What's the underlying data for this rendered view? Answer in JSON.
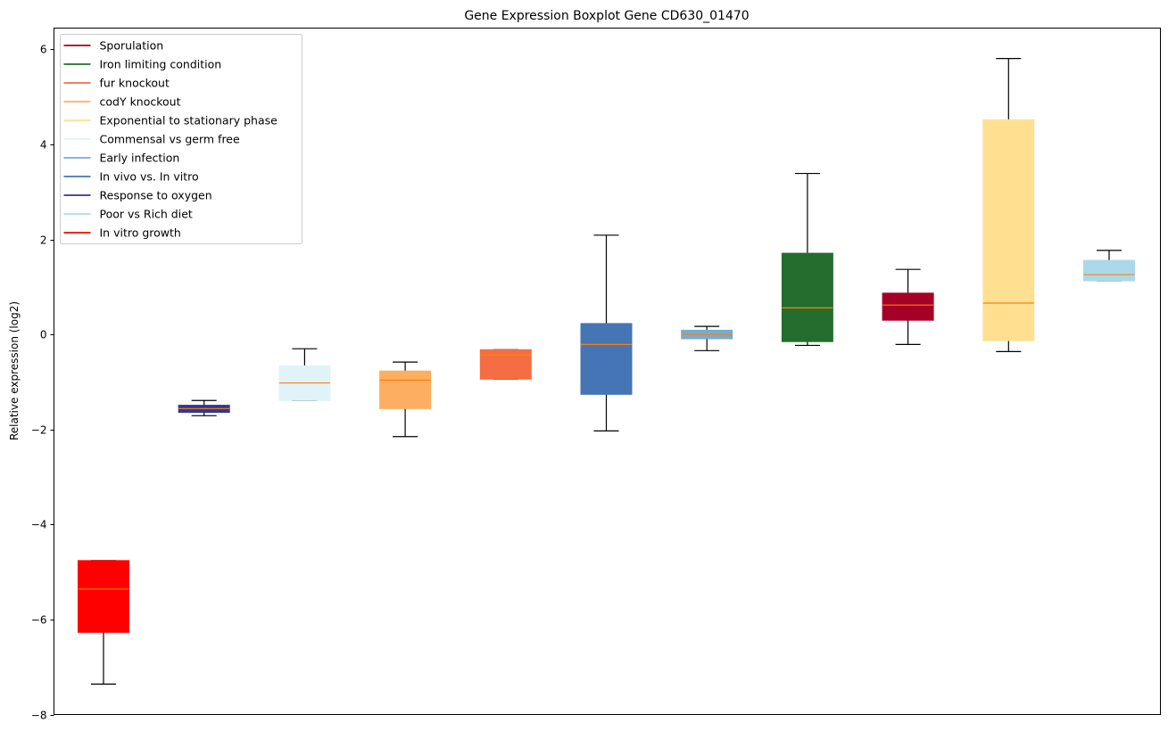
{
  "chart_data": {
    "type": "boxplot",
    "title": "Gene Expression Boxplot Gene CD630_01470",
    "xlabel": "",
    "ylabel": "Relative expression (log2)",
    "ylim": [
      -8,
      6.45
    ],
    "yticks": [
      -8,
      -6,
      -4,
      -2,
      0,
      2,
      4,
      6
    ],
    "ytick_labels": [
      "−8",
      "−6",
      "−4",
      "−2",
      "0",
      "2",
      "4",
      "6"
    ],
    "grid": false,
    "legend_position": "top-left",
    "median_color": "#ff7f0e",
    "boxes": [
      {
        "name": "In vitro growth",
        "color": "#ff0000",
        "whisker_high": -4.76,
        "q3": -4.76,
        "median": -5.36,
        "q1": -6.27,
        "whisker_low": -7.36
      },
      {
        "name": "Response to oxygen",
        "color": "#313695",
        "whisker_high": -1.39,
        "q3": -1.49,
        "median": -1.56,
        "q1": -1.64,
        "whisker_low": -1.71
      },
      {
        "name": "Commensal vs germ free",
        "color": "#e0f3f8",
        "whisker_high": -0.3,
        "q3": -0.66,
        "median": -1.02,
        "q1": -1.39,
        "whisker_low": -1.39
      },
      {
        "name": "codY knockout",
        "color": "#fdae61",
        "whisker_high": -0.58,
        "q3": -0.77,
        "median": -0.96,
        "q1": -1.56,
        "whisker_low": -2.15
      },
      {
        "name": "fur knockout",
        "color": "#f46d43",
        "whisker_high": -0.32,
        "q3": -0.32,
        "median": -0.43,
        "q1": -0.94,
        "whisker_low": -0.94
      },
      {
        "name": "In vivo vs. In vitro",
        "color": "#4575b4",
        "whisker_high": 2.09,
        "q3": 0.23,
        "median": -0.21,
        "q1": -1.26,
        "whisker_low": -2.03
      },
      {
        "name": "Early infection",
        "color": "#74add1",
        "whisker_high": 0.17,
        "q3": 0.09,
        "median": 0.0,
        "q1": -0.09,
        "whisker_low": -0.34
      },
      {
        "name": "Iron limiting condition",
        "color": "#236d2e",
        "whisker_high": 3.39,
        "q3": 1.71,
        "median": 0.56,
        "q1": -0.15,
        "whisker_low": -0.23
      },
      {
        "name": "Sporulation",
        "color": "#a50026",
        "whisker_high": 1.37,
        "q3": 0.87,
        "median": 0.62,
        "q1": 0.3,
        "whisker_low": -0.21
      },
      {
        "name": "Exponential to stationary phase",
        "color": "#fee090",
        "whisker_high": 5.81,
        "q3": 4.52,
        "median": 0.66,
        "q1": -0.13,
        "whisker_low": -0.36
      },
      {
        "name": "Poor vs Rich diet",
        "color": "#abd9e9",
        "whisker_high": 1.77,
        "q3": 1.56,
        "median": 1.26,
        "q1": 1.13,
        "whisker_low": 1.13
      }
    ],
    "legend": [
      {
        "label": "Sporulation",
        "color": "#a50026"
      },
      {
        "label": "Iron limiting condition",
        "color": "#236d2e"
      },
      {
        "label": "fur knockout",
        "color": "#f46d43"
      },
      {
        "label": "codY knockout",
        "color": "#fdae61"
      },
      {
        "label": "Exponential to stationary phase",
        "color": "#fee090"
      },
      {
        "label": "Commensal vs germ free",
        "color": "#e0f3f8"
      },
      {
        "label": "Early infection",
        "color": "#74add1"
      },
      {
        "label": "In vivo vs. In vitro",
        "color": "#4575b4"
      },
      {
        "label": "Response to oxygen",
        "color": "#313695"
      },
      {
        "label": "Poor vs Rich diet",
        "color": "#abd9e9"
      },
      {
        "label": "In vitro growth",
        "color": "#ff0000"
      }
    ]
  }
}
